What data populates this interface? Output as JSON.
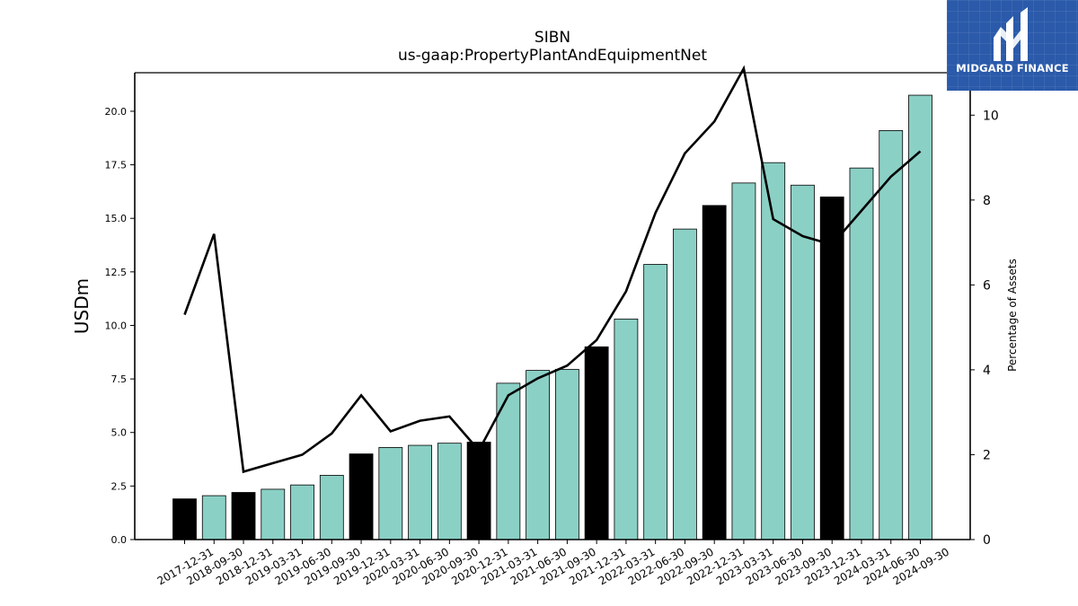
{
  "chart_data": {
    "type": "bar",
    "title": "SIBN",
    "subtitle": "us-gaap:PropertyPlantAndEquipmentNet",
    "ylabel": "USDm",
    "y2label": "Percentage of Assets",
    "ylim": [
      0,
      21.8
    ],
    "y2lim": [
      0,
      11.0
    ],
    "yticks": [
      0.0,
      2.5,
      5.0,
      7.5,
      10.0,
      12.5,
      15.0,
      17.5,
      20.0
    ],
    "y2ticks": [
      0,
      2,
      4,
      6,
      8,
      10
    ],
    "categories": [
      "2017-12-31",
      "2018-09-30",
      "2018-12-31",
      "2019-03-31",
      "2019-06-30",
      "2019-09-30",
      "2019-12-31",
      "2020-03-31",
      "2020-06-30",
      "2020-09-30",
      "2020-12-31",
      "2021-03-31",
      "2021-06-30",
      "2021-09-30",
      "2021-12-31",
      "2022-03-31",
      "2022-06-30",
      "2022-09-30",
      "2022-12-31",
      "2023-03-31",
      "2023-06-30",
      "2023-09-30",
      "2023-12-31",
      "2024-03-31",
      "2024-06-30",
      "2024-09-30"
    ],
    "series": [
      {
        "kind": "bar",
        "values": [
          1.9,
          2.05,
          2.2,
          2.35,
          2.55,
          3.0,
          4.0,
          4.3,
          4.4,
          4.5,
          4.55,
          7.3,
          7.9,
          7.95,
          9.0,
          10.3,
          12.85,
          14.5,
          15.6,
          16.65,
          17.6,
          16.55,
          16.0,
          17.35,
          19.1,
          20.75
        ],
        "highlight": [
          true,
          false,
          true,
          false,
          false,
          false,
          true,
          false,
          false,
          false,
          true,
          false,
          false,
          false,
          true,
          false,
          false,
          false,
          true,
          false,
          false,
          false,
          true,
          false,
          false,
          false
        ],
        "colors": {
          "fill": "#8bd0c5",
          "highlight": "#000000",
          "edge": "#000000"
        }
      },
      {
        "kind": "line",
        "axis": "right",
        "values": [
          5.3,
          7.2,
          1.6,
          1.8,
          2.0,
          2.5,
          3.4,
          2.55,
          2.8,
          2.9,
          2.1,
          3.4,
          3.8,
          4.1,
          4.7,
          5.85,
          7.7,
          9.1,
          9.85,
          11.1,
          7.55,
          7.15,
          6.95,
          7.75,
          8.55,
          9.15
        ],
        "color": "#000000"
      }
    ],
    "grid": false,
    "legend": "none"
  },
  "logo": {
    "text": "MIDGARD FINANCE",
    "bg_color": "#2b5aaa"
  }
}
